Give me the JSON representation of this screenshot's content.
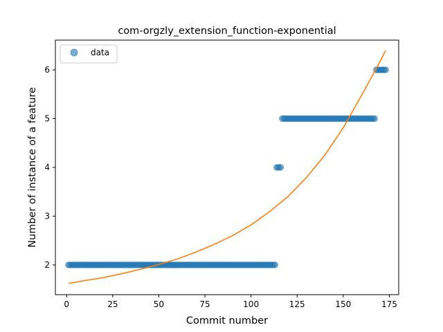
{
  "chart_data": {
    "type": "scatter",
    "title": "com-orgzly_extension_function-exponential",
    "xlabel": "Commit number",
    "ylabel": "Number of instance of a feature",
    "xlim": [
      -6.1,
      180.1
    ],
    "ylim": [
      1.39,
      6.61
    ],
    "xticks": [
      0,
      25,
      50,
      75,
      100,
      125,
      150,
      175
    ],
    "yticks": [
      2,
      3,
      4,
      5,
      6
    ],
    "grid": false,
    "legend": {
      "placement": "top-left",
      "entries": [
        "data"
      ]
    },
    "colors": {
      "data": "#1f77b4",
      "fit": "#ff7f0e"
    },
    "series": [
      {
        "name": "data",
        "kind": "scatter",
        "segments": [
          {
            "x_from": 1,
            "x_to": 113,
            "y": 2
          },
          {
            "x_from": 114,
            "x_to": 116,
            "y": 4
          },
          {
            "x_from": 117,
            "x_to": 167,
            "y": 5
          },
          {
            "x_from": 168,
            "x_to": 173,
            "y": 6
          }
        ]
      },
      {
        "kind": "line",
        "points": [
          [
            1,
            1.62
          ],
          [
            10,
            1.68
          ],
          [
            20,
            1.74
          ],
          [
            30,
            1.82
          ],
          [
            40,
            1.91
          ],
          [
            50,
            2.01
          ],
          [
            60,
            2.12
          ],
          [
            70,
            2.26
          ],
          [
            80,
            2.42
          ],
          [
            90,
            2.6
          ],
          [
            100,
            2.82
          ],
          [
            110,
            3.09
          ],
          [
            120,
            3.4
          ],
          [
            130,
            3.79
          ],
          [
            140,
            4.25
          ],
          [
            150,
            4.81
          ],
          [
            160,
            5.48
          ],
          [
            170,
            6.17
          ],
          [
            173,
            6.4
          ]
        ]
      }
    ]
  }
}
